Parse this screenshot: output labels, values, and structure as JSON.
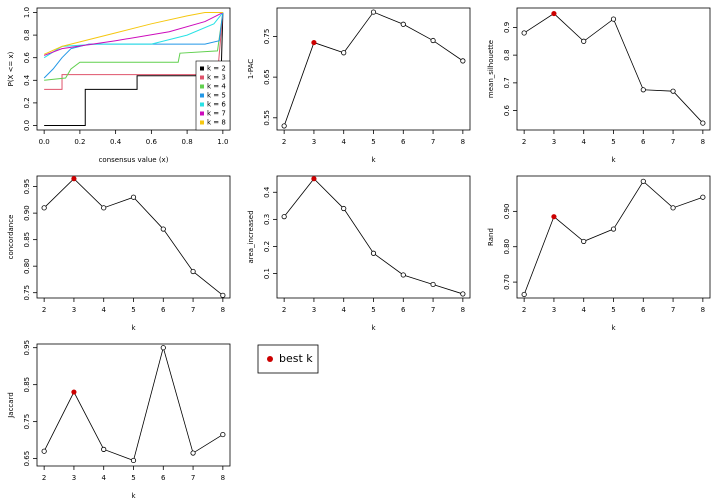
{
  "chart_data": [
    {
      "type": "ecdf",
      "xlabel": "consensus value (x)",
      "ylabel": "P(X <= x)",
      "xlim": [
        -0.04,
        1.04
      ],
      "ylim": [
        -0.04,
        1.04
      ],
      "xticks": [
        {
          "value": 0,
          "label": "0.0"
        },
        0.2,
        0.4,
        0.6,
        0.8,
        {
          "value": 1,
          "label": "1.0"
        }
      ],
      "yticks": [
        {
          "value": 0,
          "label": "0.0"
        },
        0.2,
        0.4,
        0.6,
        0.8,
        {
          "value": 1,
          "label": "1.0"
        }
      ],
      "series": [
        {
          "name": "k = 2",
          "color": "#000000",
          "x": [
            0,
            0.23,
            0.23,
            0.52,
            0.52,
            0.99,
            1
          ],
          "values": [
            0,
            0,
            0.32,
            0.32,
            0.44,
            0.44,
            1
          ]
        },
        {
          "name": "k = 3",
          "color": "#DF536B",
          "x": [
            0,
            0.1,
            0.1,
            0.97,
            1
          ],
          "values": [
            0.32,
            0.32,
            0.45,
            0.45,
            1
          ]
        },
        {
          "name": "k = 4",
          "color": "#61D04F",
          "x": [
            0,
            0.12,
            0.15,
            0.2,
            0.75,
            0.76,
            0.97,
            1
          ],
          "values": [
            0.4,
            0.42,
            0.5,
            0.56,
            0.56,
            0.64,
            0.66,
            1
          ]
        },
        {
          "name": "k = 5",
          "color": "#2297E6",
          "x": [
            0,
            0.05,
            0.1,
            0.15,
            0.25,
            0.9,
            0.98,
            1
          ],
          "values": [
            0.42,
            0.5,
            0.6,
            0.68,
            0.72,
            0.72,
            0.75,
            1
          ]
        },
        {
          "name": "k = 6",
          "color": "#28E2E5",
          "x": [
            0,
            0.1,
            0.3,
            0.6,
            0.8,
            0.95,
            1
          ],
          "values": [
            0.6,
            0.7,
            0.72,
            0.72,
            0.8,
            0.9,
            1
          ]
        },
        {
          "name": "k = 7",
          "color": "#CD0BBC",
          "x": [
            0,
            0.1,
            0.4,
            0.7,
            0.9,
            1
          ],
          "values": [
            0.62,
            0.68,
            0.75,
            0.83,
            0.92,
            1
          ]
        },
        {
          "name": "k = 8",
          "color": "#F5C710",
          "x": [
            0,
            0.1,
            0.4,
            0.6,
            0.8,
            0.9,
            1
          ],
          "values": [
            0.63,
            0.7,
            0.82,
            0.9,
            0.97,
            1,
            1
          ]
        }
      ]
    },
    {
      "type": "points",
      "xlabel": "k",
      "ylabel": "1-PAC",
      "best_k": 3,
      "x": [
        2,
        3,
        4,
        5,
        6,
        7,
        8
      ],
      "values": [
        0.53,
        0.735,
        0.71,
        0.81,
        0.78,
        0.74,
        0.69
      ],
      "xlim": [
        1.76,
        8.24
      ],
      "ylim": [
        0.52,
        0.82
      ],
      "xticks": [
        2,
        3,
        4,
        5,
        6,
        7,
        8
      ],
      "yticks": [
        0.55,
        0.65,
        0.75
      ]
    },
    {
      "type": "points",
      "xlabel": "k",
      "ylabel": "mean_silhouette",
      "best_k": 3,
      "x": [
        2,
        3,
        4,
        5,
        6,
        7,
        8
      ],
      "values": [
        0.88,
        0.95,
        0.85,
        0.93,
        0.675,
        0.67,
        0.555
      ],
      "xlim": [
        1.76,
        8.24
      ],
      "ylim": [
        0.53,
        0.97
      ],
      "xticks": [
        2,
        3,
        4,
        5,
        6,
        7,
        8
      ],
      "yticks": [
        0.6,
        0.7,
        0.8,
        0.9
      ]
    },
    {
      "type": "points",
      "xlabel": "k",
      "ylabel": "concordance",
      "best_k": 3,
      "x": [
        2,
        3,
        4,
        5,
        6,
        7,
        8
      ],
      "values": [
        0.91,
        0.965,
        0.91,
        0.93,
        0.87,
        0.79,
        0.745
      ],
      "xlim": [
        1.76,
        8.24
      ],
      "ylim": [
        0.74,
        0.97
      ],
      "xticks": [
        2,
        3,
        4,
        5,
        6,
        7,
        8
      ],
      "yticks": [
        0.75,
        {
          "value": 0.8,
          "label": "0.80"
        },
        0.85,
        {
          "value": 0.9,
          "label": "0.90"
        },
        0.95
      ]
    },
    {
      "type": "points",
      "xlabel": "k",
      "ylabel": "area_increased",
      "best_k": 3,
      "x": [
        2,
        3,
        4,
        5,
        6,
        7,
        8
      ],
      "values": [
        0.31,
        0.45,
        0.34,
        0.175,
        0.095,
        0.06,
        0.025
      ],
      "xlim": [
        1.76,
        8.24
      ],
      "ylim": [
        0.01,
        0.46
      ],
      "xticks": [
        2,
        3,
        4,
        5,
        6,
        7,
        8
      ],
      "yticks": [
        0.1,
        0.2,
        0.3,
        0.4
      ]
    },
    {
      "type": "points",
      "xlabel": "k",
      "ylabel": "Rand",
      "best_k": 3,
      "x": [
        2,
        3,
        4,
        5,
        6,
        7,
        8
      ],
      "values": [
        0.665,
        0.885,
        0.815,
        0.85,
        0.985,
        0.91,
        0.94
      ],
      "xlim": [
        1.76,
        8.24
      ],
      "ylim": [
        0.655,
        1.0
      ],
      "xticks": [
        2,
        3,
        4,
        5,
        6,
        7,
        8
      ],
      "yticks": [
        {
          "value": 0.7,
          "label": "0.70"
        },
        {
          "value": 0.8,
          "label": "0.80"
        },
        {
          "value": 0.9,
          "label": "0.90"
        }
      ]
    },
    {
      "type": "points",
      "xlabel": "k",
      "ylabel": "Jaccard",
      "best_k": 3,
      "x": [
        2,
        3,
        4,
        5,
        6,
        7,
        8
      ],
      "values": [
        0.67,
        0.83,
        0.675,
        0.645,
        0.95,
        0.665,
        0.715
      ],
      "xlim": [
        1.76,
        8.24
      ],
      "ylim": [
        0.63,
        0.96
      ],
      "xticks": [
        2,
        3,
        4,
        5,
        6,
        7,
        8
      ],
      "yticks": [
        0.65,
        0.75,
        0.85,
        0.95
      ]
    }
  ],
  "legend": {
    "label": "best k",
    "color": "#CC0000"
  }
}
